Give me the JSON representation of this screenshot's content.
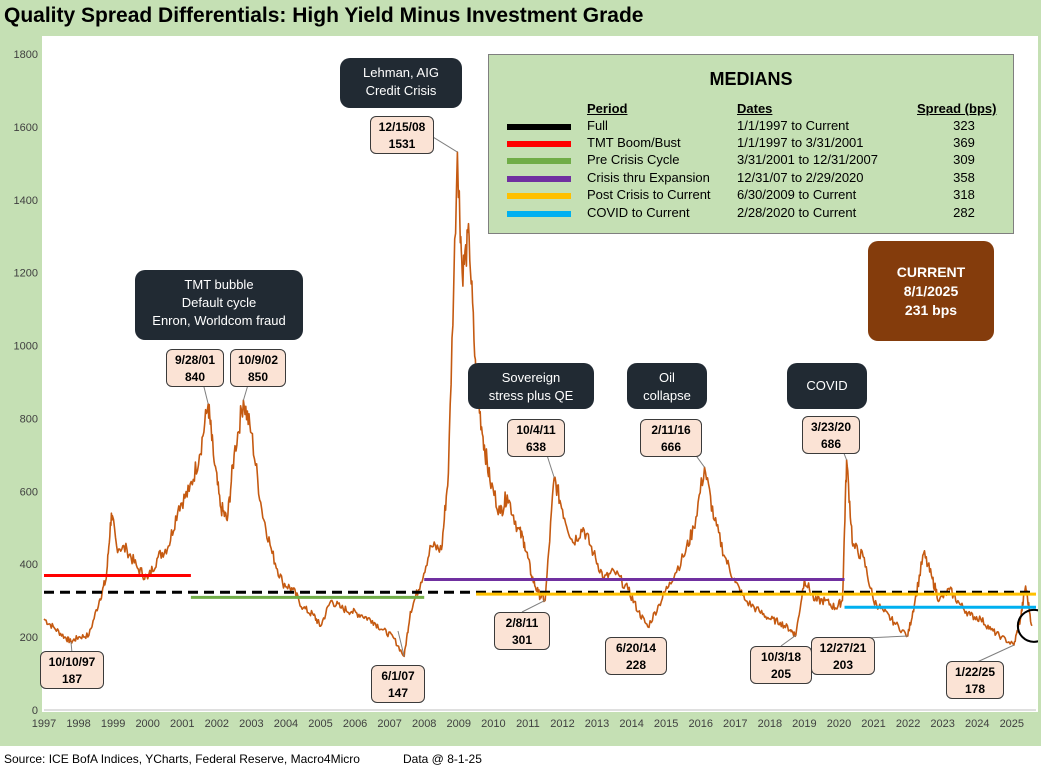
{
  "title": "Quality Spread Differentials: High Yield Minus Investment Grade",
  "footer": {
    "source": "Source: ICE BofA Indices, YCharts, Federal Reserve, Macro4Micro",
    "data_at": "Data @ 8-1-25"
  },
  "colors": {
    "frame": "#c5e0b4",
    "series": "#c55a11",
    "dark_box": "#212a33",
    "light_box": "#fbe3d5",
    "current_box": "#843c0c"
  },
  "chart_data": {
    "type": "line",
    "xlim": [
      1997,
      2025.7
    ],
    "ylim": [
      0,
      1800
    ],
    "x_ticks": [
      "1997",
      "1998",
      "1999",
      "2000",
      "2001",
      "2002",
      "2003",
      "2004",
      "2005",
      "2006",
      "2007",
      "2008",
      "2009",
      "2010",
      "2011",
      "2012",
      "2013",
      "2014",
      "2015",
      "2016",
      "2017",
      "2018",
      "2019",
      "2020",
      "2021",
      "2022",
      "2023",
      "2024",
      "2025"
    ],
    "y_ticks": [
      0,
      200,
      400,
      600,
      800,
      1000,
      1200,
      1400,
      1600,
      1800
    ],
    "series": [
      {
        "color": "#c55a11",
        "points": [
          [
            1997.0,
            250
          ],
          [
            1997.3,
            225
          ],
          [
            1997.6,
            200
          ],
          [
            1997.78,
            187
          ],
          [
            1998.0,
            200
          ],
          [
            1998.3,
            205
          ],
          [
            1998.6,
            300
          ],
          [
            1998.8,
            360
          ],
          [
            1998.95,
            540
          ],
          [
            1999.1,
            450
          ],
          [
            1999.4,
            440
          ],
          [
            1999.7,
            390
          ],
          [
            2000.0,
            360
          ],
          [
            2000.3,
            420
          ],
          [
            2000.6,
            450
          ],
          [
            2000.9,
            560
          ],
          [
            2001.2,
            600
          ],
          [
            2001.5,
            700
          ],
          [
            2001.75,
            840
          ],
          [
            2001.9,
            700
          ],
          [
            2002.1,
            560
          ],
          [
            2002.3,
            520
          ],
          [
            2002.5,
            700
          ],
          [
            2002.77,
            850
          ],
          [
            2003.0,
            760
          ],
          [
            2003.3,
            550
          ],
          [
            2003.6,
            430
          ],
          [
            2003.9,
            350
          ],
          [
            2004.2,
            330
          ],
          [
            2004.5,
            280
          ],
          [
            2004.8,
            260
          ],
          [
            2005.0,
            230
          ],
          [
            2005.3,
            300
          ],
          [
            2005.6,
            280
          ],
          [
            2005.9,
            270
          ],
          [
            2006.2,
            260
          ],
          [
            2006.5,
            245
          ],
          [
            2006.8,
            220
          ],
          [
            2007.1,
            200
          ],
          [
            2007.42,
            147
          ],
          [
            2007.6,
            270
          ],
          [
            2007.9,
            350
          ],
          [
            2008.2,
            450
          ],
          [
            2008.5,
            440
          ],
          [
            2008.7,
            650
          ],
          [
            2008.96,
            1531
          ],
          [
            2009.1,
            1200
          ],
          [
            2009.3,
            1300
          ],
          [
            2009.5,
            900
          ],
          [
            2009.7,
            750
          ],
          [
            2009.9,
            630
          ],
          [
            2010.2,
            540
          ],
          [
            2010.4,
            590
          ],
          [
            2010.7,
            500
          ],
          [
            2010.9,
            460
          ],
          [
            2011.1,
            370
          ],
          [
            2011.3,
            320
          ],
          [
            2011.5,
            301
          ],
          [
            2011.76,
            638
          ],
          [
            2012.0,
            550
          ],
          [
            2012.3,
            460
          ],
          [
            2012.6,
            500
          ],
          [
            2012.9,
            430
          ],
          [
            2013.2,
            360
          ],
          [
            2013.5,
            380
          ],
          [
            2013.9,
            330
          ],
          [
            2014.2,
            270
          ],
          [
            2014.47,
            228
          ],
          [
            2014.8,
            290
          ],
          [
            2015.1,
            350
          ],
          [
            2015.5,
            420
          ],
          [
            2015.8,
            500
          ],
          [
            2016.11,
            666
          ],
          [
            2016.4,
            520
          ],
          [
            2016.7,
            420
          ],
          [
            2017.0,
            350
          ],
          [
            2017.3,
            300
          ],
          [
            2017.7,
            270
          ],
          [
            2018.0,
            250
          ],
          [
            2018.3,
            240
          ],
          [
            2018.6,
            220
          ],
          [
            2018.75,
            205
          ],
          [
            2019.0,
            360
          ],
          [
            2019.3,
            300
          ],
          [
            2019.6,
            300
          ],
          [
            2019.9,
            280
          ],
          [
            2020.1,
            300
          ],
          [
            2020.22,
            686
          ],
          [
            2020.4,
            450
          ],
          [
            2020.7,
            420
          ],
          [
            2021.0,
            300
          ],
          [
            2021.3,
            270
          ],
          [
            2021.6,
            240
          ],
          [
            2021.99,
            203
          ],
          [
            2022.2,
            300
          ],
          [
            2022.45,
            430
          ],
          [
            2022.7,
            360
          ],
          [
            2022.9,
            300
          ],
          [
            2023.2,
            330
          ],
          [
            2023.5,
            290
          ],
          [
            2023.8,
            260
          ],
          [
            2024.1,
            250
          ],
          [
            2024.4,
            220
          ],
          [
            2024.7,
            200
          ],
          [
            2025.06,
            178
          ],
          [
            2025.25,
            250
          ],
          [
            2025.4,
            340
          ],
          [
            2025.58,
            231
          ]
        ]
      }
    ],
    "medians": {
      "title": "MEDIANS",
      "headers": {
        "period": "Period",
        "dates": "Dates",
        "spread": "Spread (bps)"
      },
      "rows": [
        {
          "period": "Full",
          "dates": "1/1/1997  to Current",
          "spread": "323",
          "color": "#000000",
          "dashed": true,
          "x0": 1997,
          "x1": 2025.7
        },
        {
          "period": "TMT Boom/Bust",
          "dates": "1/1/1997  to 3/31/2001",
          "spread": "369",
          "color": "#ff0000",
          "dashed": false,
          "x0": 1997,
          "x1": 2001.25
        },
        {
          "period": "Pre Crisis Cycle",
          "dates": "3/31/2001  to 12/31/2007",
          "spread": "309",
          "color": "#70ad47",
          "dashed": false,
          "x0": 2001.25,
          "x1": 2008.0
        },
        {
          "period": "Crisis thru Expansion",
          "dates": "12/31/07  to 2/29/2020",
          "spread": "358",
          "color": "#7030a0",
          "dashed": false,
          "x0": 2008.0,
          "x1": 2020.16
        },
        {
          "period": "Post Crisis to Current",
          "dates": "6/30/2009  to Current",
          "spread": "318",
          "color": "#ffc000",
          "dashed": false,
          "x0": 2009.5,
          "x1": 2025.7
        },
        {
          "period": "COVID to Current",
          "dates": " 2/28/2020  to Current",
          "spread": "282",
          "color": "#00b0f0",
          "dashed": false,
          "x0": 2020.16,
          "x1": 2025.7
        }
      ]
    },
    "events": [
      {
        "lines": [
          "TMT bubble",
          "Default cycle",
          "Enron, Worldcom fraud"
        ]
      },
      {
        "lines": [
          "Lehman, AIG",
          "Credit Crisis"
        ]
      },
      {
        "lines": [
          "Sovereign",
          "stress plus QE"
        ]
      },
      {
        "lines": [
          "Oil",
          "collapse"
        ]
      },
      {
        "lines": [
          "COVID"
        ]
      }
    ],
    "annotations": [
      {
        "date": "10/10/97",
        "value": "187",
        "x": 1997.78,
        "y": 187
      },
      {
        "date": "9/28/01",
        "value": "840",
        "x": 2001.75,
        "y": 840
      },
      {
        "date": "10/9/02",
        "value": "850",
        "x": 2002.77,
        "y": 850
      },
      {
        "date": "12/15/08",
        "value": "1531",
        "x": 2008.96,
        "y": 1531
      },
      {
        "date": "6/1/07",
        "value": "147",
        "x": 2007.42,
        "y": 147
      },
      {
        "date": "10/4/11",
        "value": "638",
        "x": 2011.76,
        "y": 638
      },
      {
        "date": "2/8/11",
        "value": "301",
        "x": 2011.5,
        "y": 301
      },
      {
        "date": "6/20/14",
        "value": "228",
        "x": 2014.47,
        "y": 228
      },
      {
        "date": "2/11/16",
        "value": "666",
        "x": 2016.11,
        "y": 666
      },
      {
        "date": "3/23/20",
        "value": "686",
        "x": 2020.22,
        "y": 686
      },
      {
        "date": "10/3/18",
        "value": "205",
        "x": 2018.75,
        "y": 205
      },
      {
        "date": "12/27/21",
        "value": "203",
        "x": 2021.99,
        "y": 203
      },
      {
        "date": "1/22/25",
        "value": "178",
        "x": 2025.06,
        "y": 178
      }
    ],
    "current": {
      "label": "CURRENT",
      "date": "8/1/2025",
      "value": "231 bps",
      "x": 2025.58,
      "y": 231
    }
  }
}
